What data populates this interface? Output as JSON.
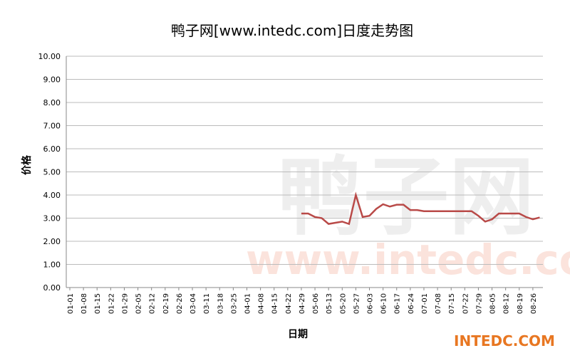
{
  "chart_data": {
    "type": "line",
    "title": "鸭子网[www.intedc.com]日度走势图",
    "x_label": "日期",
    "y_label": "价格",
    "categories": [
      "01-01",
      null,
      "01-08",
      null,
      "01-15",
      null,
      "01-22",
      null,
      "01-29",
      null,
      "02-05",
      null,
      "02-12",
      null,
      "02-19",
      null,
      "02-26",
      null,
      "03-04",
      null,
      "03-11",
      null,
      "03-18",
      null,
      "03-25",
      null,
      "04-01",
      null,
      "04-08",
      null,
      "04-15",
      null,
      "04-22",
      null,
      "04-29",
      null,
      "05-06",
      null,
      "05-13",
      null,
      "05-20",
      null,
      "05-27",
      null,
      "06-03",
      null,
      "06-10",
      null,
      "06-17",
      null,
      "06-24",
      null,
      "07-01",
      null,
      "07-08",
      null,
      "07-15",
      null,
      "07-22",
      null,
      "07-29",
      null,
      "08-05",
      null,
      "08-12",
      null,
      "08-19",
      null,
      "08-26",
      null
    ],
    "series": [
      {
        "name": "价格",
        "color": "#b94a48",
        "values": [
          null,
          null,
          null,
          null,
          null,
          null,
          null,
          null,
          null,
          null,
          null,
          null,
          null,
          null,
          null,
          null,
          null,
          null,
          null,
          null,
          null,
          null,
          null,
          null,
          null,
          null,
          null,
          null,
          null,
          null,
          null,
          null,
          null,
          null,
          3.2,
          3.2,
          3.05,
          3.0,
          2.75,
          2.8,
          2.85,
          2.75,
          4.0,
          3.05,
          3.1,
          3.4,
          3.6,
          3.5,
          3.58,
          3.58,
          3.35,
          3.35,
          3.3,
          3.3,
          3.3,
          3.3,
          3.3,
          3.3,
          3.3,
          3.3,
          3.1,
          2.85,
          2.95,
          3.2,
          3.2,
          3.2,
          3.2,
          3.05,
          2.95,
          3.03
        ]
      }
    ],
    "ylim": [
      0,
      10
    ],
    "yticks": [
      {
        "value": 0,
        "label": "0.00"
      },
      {
        "value": 1,
        "label": "1.00"
      },
      {
        "value": 2,
        "label": "2.00"
      },
      {
        "value": 3,
        "label": "3.00"
      },
      {
        "value": 4,
        "label": "4.00"
      },
      {
        "value": 5,
        "label": "5.00"
      },
      {
        "value": 6,
        "label": "6.00"
      },
      {
        "value": 7,
        "label": "7.00"
      },
      {
        "value": 8,
        "label": "8.00"
      },
      {
        "value": 9,
        "label": "9.00"
      },
      {
        "value": 10,
        "label": "10.00"
      }
    ],
    "grid": true,
    "watermarks": [
      "鸭子网",
      "www.intedc.com",
      "INTEDC.COM"
    ]
  }
}
